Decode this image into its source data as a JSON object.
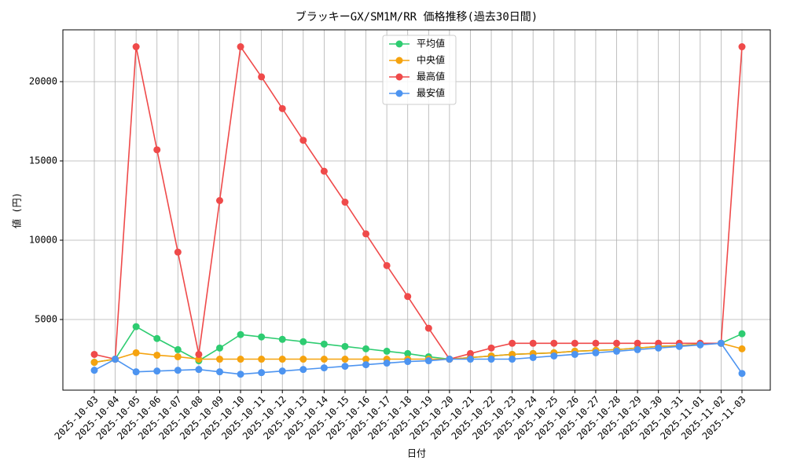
{
  "chart_data": {
    "type": "line",
    "title": "ブラッキーGX/SM1M/RR 価格推移(過去30日間)",
    "x_label": "日付",
    "y_label": "値 (円)",
    "categories": [
      "2025-10-03",
      "2025-10-04",
      "2025-10-05",
      "2025-10-06",
      "2025-10-07",
      "2025-10-08",
      "2025-10-09",
      "2025-10-10",
      "2025-10-11",
      "2025-10-12",
      "2025-10-13",
      "2025-10-14",
      "2025-10-15",
      "2025-10-16",
      "2025-10-17",
      "2025-10-18",
      "2025-10-19",
      "2025-10-20",
      "2025-10-21",
      "2025-10-22",
      "2025-10-23",
      "2025-10-24",
      "2025-10-25",
      "2025-10-26",
      "2025-10-27",
      "2025-10-28",
      "2025-10-29",
      "2025-10-30",
      "2025-10-31",
      "2025-11-01",
      "2025-11-02",
      "2025-11-03"
    ],
    "series": [
      {
        "name": "平均値",
        "color": "#2ecc71",
        "values": [
          2300,
          2500,
          4550,
          3800,
          3100,
          2400,
          3200,
          4050,
          3900,
          3750,
          3600,
          3450,
          3300,
          3150,
          3000,
          2850,
          2650,
          2500,
          2600,
          2700,
          2800,
          2850,
          2900,
          3000,
          3050,
          3100,
          3200,
          3300,
          3350,
          3450,
          3500,
          4100
        ]
      },
      {
        "name": "中央値",
        "color": "#f5a30f",
        "values": [
          2300,
          2500,
          2900,
          2750,
          2650,
          2500,
          2500,
          2500,
          2500,
          2500,
          2500,
          2500,
          2500,
          2500,
          2500,
          2500,
          2500,
          2500,
          2600,
          2700,
          2800,
          2850,
          2900,
          3000,
          3050,
          3100,
          3200,
          3300,
          3350,
          3450,
          3500,
          3150
        ]
      },
      {
        "name": "最高値",
        "color": "#ef4a4a",
        "values": [
          2800,
          2500,
          22200,
          15700,
          9250,
          2800,
          12500,
          22200,
          20300,
          18300,
          16300,
          14350,
          12400,
          10400,
          8400,
          6450,
          4450,
          2500,
          2850,
          3200,
          3500,
          3500,
          3500,
          3500,
          3500,
          3500,
          3500,
          3500,
          3500,
          3500,
          3500,
          22200
        ]
      },
      {
        "name": "最安値",
        "color": "#4d94f0",
        "values": [
          1800,
          2500,
          1700,
          1750,
          1800,
          1850,
          1700,
          1550,
          1650,
          1750,
          1850,
          1950,
          2050,
          2150,
          2250,
          2350,
          2400,
          2500,
          2500,
          2500,
          2500,
          2600,
          2700,
          2800,
          2900,
          3000,
          3100,
          3200,
          3300,
          3400,
          3500,
          1600
        ]
      }
    ],
    "ylim": [
      545,
      23267
    ],
    "yticks": [
      5000,
      10000,
      15000,
      20000
    ],
    "grid": true,
    "legend": "upper center"
  }
}
